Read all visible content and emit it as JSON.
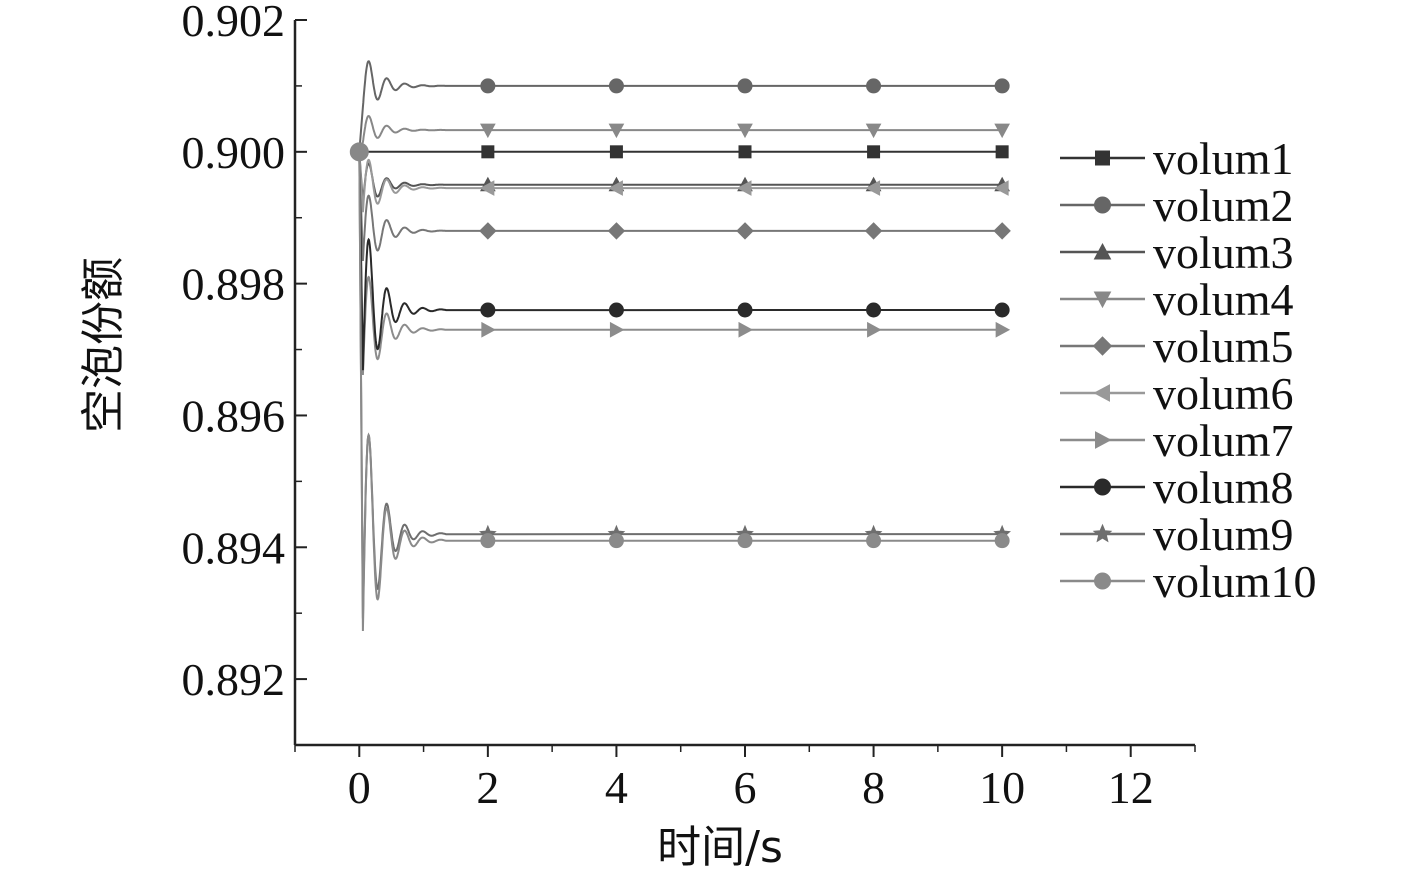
{
  "chart_data": {
    "type": "line",
    "xlabel": "时间/s",
    "ylabel": "空泡份额",
    "xlim": [
      -1,
      13
    ],
    "ylim": [
      0.891,
      0.902
    ],
    "x_ticks": [
      0,
      2,
      4,
      6,
      8,
      10,
      12
    ],
    "x_tick_labels": [
      "0",
      "2",
      "4",
      "6",
      "8",
      "10",
      "12"
    ],
    "y_ticks": [
      0.892,
      0.894,
      0.896,
      0.898,
      0.9,
      0.902
    ],
    "y_tick_labels": [
      "0.892",
      "0.894",
      "0.896",
      "0.898",
      "0.900",
      "0.902"
    ],
    "legend_position": "right",
    "grid": false,
    "marker_x": [
      2,
      4,
      6,
      8,
      10
    ],
    "series": [
      {
        "name": "volum1",
        "marker": "square",
        "color": "#333333",
        "steady": 0.9,
        "osc_amp": 0.0,
        "start": 0.9
      },
      {
        "name": "volum2",
        "marker": "circle",
        "color": "#666666",
        "steady": 0.901,
        "osc_amp": 0.0007,
        "start": 0.9
      },
      {
        "name": "volum3",
        "marker": "triangle-up",
        "color": "#555555",
        "steady": 0.8995,
        "osc_amp": 0.0006,
        "start": 0.9
      },
      {
        "name": "volum4",
        "marker": "triangle-down",
        "color": "#888888",
        "steady": 0.90033,
        "osc_amp": 0.0004,
        "start": 0.9
      },
      {
        "name": "volum5",
        "marker": "diamond",
        "color": "#777777",
        "steady": 0.8988,
        "osc_amp": 0.001,
        "start": 0.9
      },
      {
        "name": "volum6",
        "marker": "triangle-left",
        "color": "#999999",
        "steady": 0.89945,
        "osc_amp": 0.0008,
        "start": 0.9
      },
      {
        "name": "volum7",
        "marker": "triangle-right",
        "color": "#8c8c8c",
        "steady": 0.8973,
        "osc_amp": 0.0015,
        "start": 0.9
      },
      {
        "name": "volum8",
        "marker": "circle",
        "color": "#2a2a2a",
        "steady": 0.8976,
        "osc_amp": 0.002,
        "start": 0.9
      },
      {
        "name": "volum9",
        "marker": "star",
        "color": "#6e6e6e",
        "steady": 0.8942,
        "osc_amp": 0.0028,
        "start": 0.9
      },
      {
        "name": "volum10",
        "marker": "circle",
        "color": "#8a8a8a",
        "steady": 0.8941,
        "osc_amp": 0.003,
        "start": 0.9
      }
    ]
  }
}
